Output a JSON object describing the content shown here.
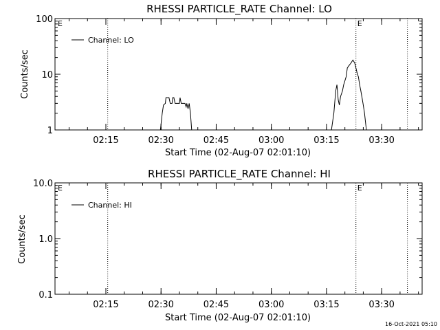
{
  "chart_data": [
    {
      "type": "line",
      "title": "RHESSI PARTICLE_RATE Channel: LO",
      "xlabel": "Start Time (02-Aug-07 02:01:10)",
      "ylabel": "Counts/sec",
      "yscale": "log",
      "ylim": [
        1,
        100
      ],
      "ytick_labels": [
        {
          "value": 1,
          "label": "1"
        },
        {
          "value": 10,
          "label": "10"
        },
        {
          "value": 100,
          "label": "100"
        }
      ],
      "xlim": [
        "02:01:10",
        "03:41:00"
      ],
      "xtick_labels": [
        {
          "value": "02:15",
          "label": "02:15"
        },
        {
          "value": "02:30",
          "label": "02:30"
        },
        {
          "value": "02:45",
          "label": "02:45"
        },
        {
          "value": "03:00",
          "label": "03:00"
        },
        {
          "value": "03:15",
          "label": "03:15"
        },
        {
          "value": "03:30",
          "label": "03:30"
        }
      ],
      "vlines": [
        {
          "time": "02:15:30",
          "style": "dotted",
          "label": ""
        },
        {
          "time": "03:23:00",
          "style": "dotted",
          "label": "E"
        },
        {
          "time": "03:37:00",
          "style": "dotted",
          "label": ""
        }
      ],
      "corner_label": "E",
      "legend": {
        "position": "top-left",
        "entries": [
          "Channel: LO"
        ]
      },
      "series": [
        {
          "name": "Channel: LO",
          "segments": [
            [
              [
                "02:29:50",
                1
              ],
              [
                "02:30:20",
                2.0
              ],
              [
                "02:30:40",
                2.8
              ],
              [
                "02:31:10",
                3.0
              ],
              [
                "02:31:20",
                3.8
              ],
              [
                "02:32:10",
                3.8
              ],
              [
                "02:32:30",
                3.0
              ],
              [
                "02:33:00",
                3.0
              ],
              [
                "02:33:10",
                3.8
              ],
              [
                "02:33:30",
                3.8
              ],
              [
                "02:33:50",
                3.0
              ],
              [
                "02:35:00",
                3.0
              ],
              [
                "02:35:10",
                3.8
              ],
              [
                "02:35:30",
                3.0
              ],
              [
                "02:36:30",
                3.0
              ],
              [
                "02:36:50",
                2.6
              ],
              [
                "02:37:00",
                3.0
              ],
              [
                "02:37:20",
                2.4
              ],
              [
                "02:37:40",
                3.0
              ],
              [
                "02:38:00",
                2.0
              ],
              [
                "02:38:20",
                1
              ]
            ],
            [
              [
                "03:16:20",
                1
              ],
              [
                "03:17:00",
                2.0
              ],
              [
                "03:17:30",
                5.0
              ],
              [
                "03:17:50",
                6.5
              ],
              [
                "03:18:10",
                3.5
              ],
              [
                "03:18:30",
                2.8
              ],
              [
                "03:18:50",
                4.0
              ],
              [
                "03:19:20",
                5.0
              ],
              [
                "03:19:40",
                6.5
              ],
              [
                "03:20:20",
                9.0
              ],
              [
                "03:20:40",
                13.0
              ],
              [
                "03:21:00",
                14.0
              ],
              [
                "03:21:40",
                16.0
              ],
              [
                "03:22:10",
                18.0
              ],
              [
                "03:22:40",
                16.0
              ],
              [
                "03:23:00",
                13.0
              ],
              [
                "03:23:20",
                10.5
              ],
              [
                "03:23:40",
                9.0
              ],
              [
                "03:24:00",
                6.5
              ],
              [
                "03:24:20",
                5.0
              ],
              [
                "03:24:40",
                3.8
              ],
              [
                "03:25:00",
                2.8
              ],
              [
                "03:25:20",
                2.0
              ],
              [
                "03:25:50",
                1
              ]
            ]
          ]
        }
      ]
    },
    {
      "type": "line",
      "title": "RHESSI PARTICLE_RATE Channel: HI",
      "xlabel": "Start Time (02-Aug-07 02:01:10)",
      "ylabel": "Counts/sec",
      "yscale": "log",
      "ylim": [
        0.1,
        10
      ],
      "ytick_labels": [
        {
          "value": 0.1,
          "label": "0.1"
        },
        {
          "value": 1,
          "label": "1.0"
        },
        {
          "value": 10,
          "label": "10.0"
        }
      ],
      "xlim": [
        "02:01:10",
        "03:41:00"
      ],
      "xtick_labels": [
        {
          "value": "02:15",
          "label": "02:15"
        },
        {
          "value": "02:30",
          "label": "02:30"
        },
        {
          "value": "02:45",
          "label": "02:45"
        },
        {
          "value": "03:00",
          "label": "03:00"
        },
        {
          "value": "03:15",
          "label": "03:15"
        },
        {
          "value": "03:30",
          "label": "03:30"
        }
      ],
      "vlines": [
        {
          "time": "02:15:30",
          "style": "dotted",
          "label": ""
        },
        {
          "time": "03:23:00",
          "style": "dotted",
          "label": "E"
        },
        {
          "time": "03:37:00",
          "style": "dotted",
          "label": ""
        }
      ],
      "corner_label": "E",
      "legend": {
        "position": "top-left",
        "entries": [
          "Channel: HI"
        ]
      },
      "series": [
        {
          "name": "Channel: HI",
          "segments": []
        }
      ]
    }
  ],
  "footer": {
    "timestamp": "16-Oct-2021 05:10"
  }
}
